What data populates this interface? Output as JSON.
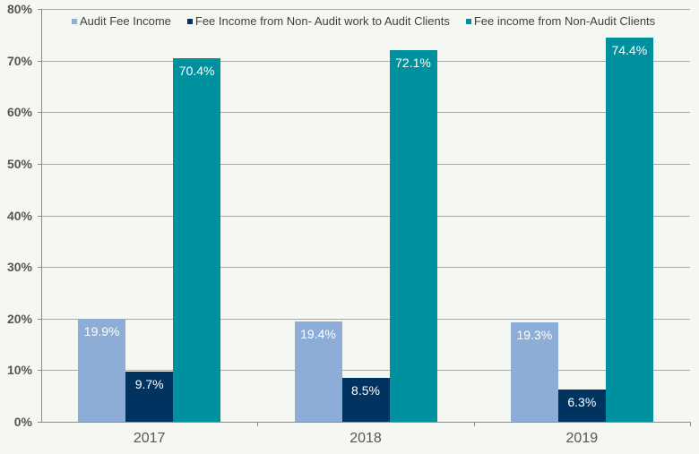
{
  "chart_data": {
    "type": "bar",
    "title": "",
    "xlabel": "",
    "ylabel": "",
    "categories": [
      "2017",
      "2018",
      "2019"
    ],
    "series": [
      {
        "name": "Audit Fee Income",
        "color": "#8eadd6",
        "values": [
          19.9,
          19.4,
          19.3
        ],
        "labels": [
          "19.9%",
          "19.4%",
          "19.3%"
        ]
      },
      {
        "name": "Fee Income from Non- Audit work to Audit Clients",
        "color": "#00335f",
        "values": [
          9.7,
          8.5,
          6.3
        ],
        "labels": [
          "9.7%",
          "8.5%",
          "6.3%"
        ]
      },
      {
        "name": "Fee income from Non-Audit Clients",
        "color": "#00919e",
        "values": [
          70.4,
          72.1,
          74.4
        ],
        "labels": [
          "70.4%",
          "72.1%",
          "74.4%"
        ]
      }
    ],
    "ylim": [
      0,
      80
    ],
    "yticks": [
      "0%",
      "10%",
      "20%",
      "30%",
      "40%",
      "50%",
      "60%",
      "70%",
      "80%"
    ],
    "grid": true,
    "legend_position": "top-inside"
  }
}
